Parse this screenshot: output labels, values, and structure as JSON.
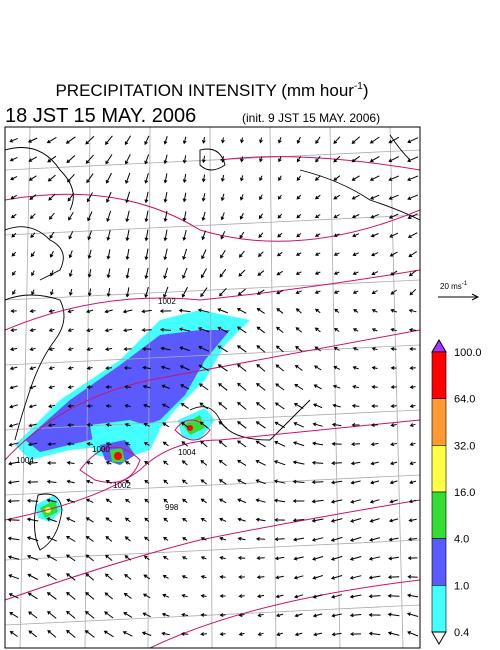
{
  "header": {
    "title": "PRECIPITATION INTENSITY (mm hour",
    "title_sup": "-1",
    "title_end": ")",
    "time": "18 JST 15 MAY. 2006",
    "init": "(init. 9 JST 15 MAY. 2006)"
  },
  "wind_reference": {
    "label": "20 ms",
    "sup": "-1"
  },
  "isobar_labels": [
    "1002",
    "1004",
    "1004",
    "1002",
    "1000",
    "998"
  ],
  "colorbar": {
    "labels": [
      "100.0",
      "64.0",
      "32.0",
      "16.0",
      "4.0",
      "1.0",
      "0.4"
    ],
    "colors": [
      "#ff0000",
      "#ff9933",
      "#ffff44",
      "#33dd33",
      "#5a5aff",
      "#44ffff"
    ],
    "over_color": "#aa33ff"
  }
}
